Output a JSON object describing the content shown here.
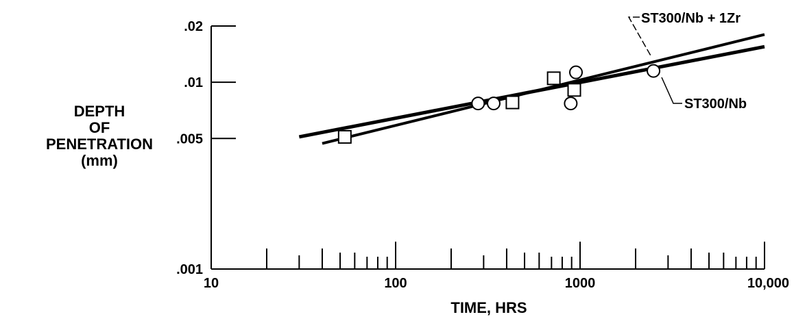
{
  "chart_data": {
    "type": "scatter",
    "title": "",
    "xlabel": "TIME, HRS",
    "ylabel_lines": [
      "DEPTH",
      "OF",
      "PENETRATION",
      "(mm)"
    ],
    "x_scale": "log",
    "y_scale": "log",
    "xlim": [
      10,
      10000
    ],
    "ylim": [
      0.001,
      0.02
    ],
    "x_ticks": [
      {
        "value": 10,
        "label": "10"
      },
      {
        "value": 100,
        "label": "100"
      },
      {
        "value": 1000,
        "label": "1000"
      },
      {
        "value": 10000,
        "label": "10,000"
      }
    ],
    "y_ticks": [
      {
        "value": 0.001,
        "label": ".001"
      },
      {
        "value": 0.005,
        "label": ".005"
      },
      {
        "value": 0.01,
        "label": ".01"
      },
      {
        "value": 0.02,
        "label": ".02"
      }
    ],
    "grid": false,
    "series": [
      {
        "name": "ST300/Nb+1Zr",
        "marker": "circle",
        "points": [
          {
            "x": 280,
            "y": 0.0077
          },
          {
            "x": 340,
            "y": 0.0077
          },
          {
            "x": 890,
            "y": 0.0077
          },
          {
            "x": 950,
            "y": 0.0113
          },
          {
            "x": 2500,
            "y": 0.0115
          }
        ],
        "fit_line": [
          {
            "x": 40,
            "y": 0.0047
          },
          {
            "x": 10000,
            "y": 0.018
          }
        ]
      },
      {
        "name": "ST300/Nb",
        "marker": "square",
        "points": [
          {
            "x": 53,
            "y": 0.0051
          },
          {
            "x": 430,
            "y": 0.0078
          },
          {
            "x": 720,
            "y": 0.0105
          },
          {
            "x": 930,
            "y": 0.0091
          }
        ],
        "fit_line": [
          {
            "x": 30,
            "y": 0.0051
          },
          {
            "x": 10000,
            "y": 0.0155
          }
        ]
      }
    ],
    "annotations": [
      {
        "text": "ST300/Nb + 1Zr",
        "series": "ST300/Nb+1Zr"
      },
      {
        "text": "ST300/Nb",
        "series": "ST300/Nb"
      }
    ]
  }
}
